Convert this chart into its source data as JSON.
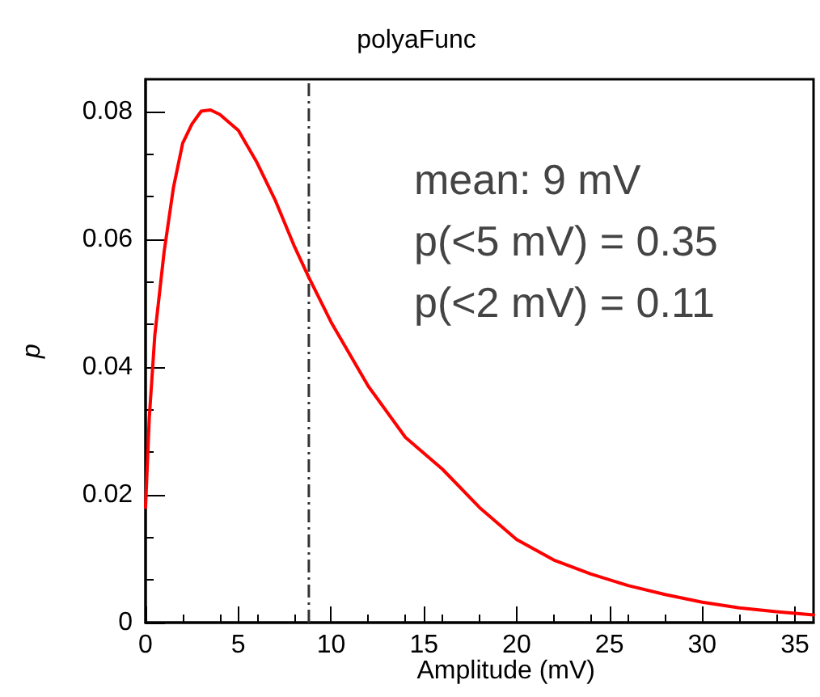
{
  "chart_data": {
    "type": "line",
    "title": "polyaFunc",
    "xlabel": "Amplitude (mV)",
    "ylabel": "p",
    "xlim": [
      0,
      36
    ],
    "ylim": [
      0,
      0.085
    ],
    "xticks": [
      0,
      5,
      10,
      15,
      20,
      25,
      30,
      35
    ],
    "yticks": [
      0,
      0.02,
      0.04,
      0.06,
      0.08
    ],
    "series": [
      {
        "color": "#ff0000",
        "x": [
          0,
          0.2,
          0.5,
          1,
          1.5,
          2,
          2.5,
          3,
          3.5,
          4,
          5,
          6,
          7,
          8,
          8.8,
          10,
          12,
          14,
          16,
          18,
          20,
          22,
          24,
          26,
          28,
          30,
          32,
          34,
          36
        ],
        "values": [
          0.018,
          0.032,
          0.045,
          0.058,
          0.068,
          0.075,
          0.078,
          0.08,
          0.0802,
          0.0795,
          0.077,
          0.072,
          0.066,
          0.059,
          0.054,
          0.047,
          0.037,
          0.029,
          0.024,
          0.018,
          0.013,
          0.0098,
          0.0076,
          0.0058,
          0.0044,
          0.0032,
          0.0023,
          0.0017,
          0.0012
        ]
      }
    ],
    "ref_lines": [
      {
        "axis": "x",
        "value": 8.8,
        "label": null,
        "color": "#333333",
        "line_style": "dashed"
      }
    ],
    "annotations": [
      "mean: 9 mV",
      "p(<5 mV) = 0.35",
      "p(<2 mV) = 0.11"
    ],
    "grid": false,
    "marker": "none",
    "line_style": "solid"
  }
}
